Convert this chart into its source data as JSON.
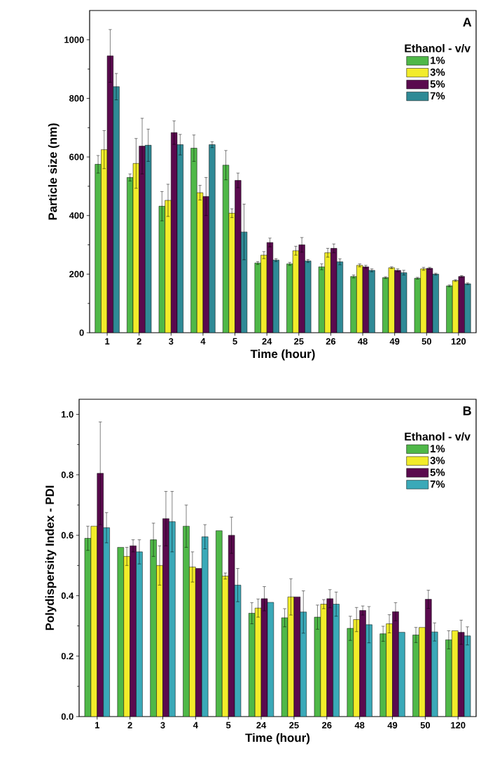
{
  "chart_data": [
    {
      "type": "bar",
      "xlabel": "Time (hour)",
      "ylabel": "Particle size (nm)",
      "legend_title": "Ethanol - v/v",
      "legend": "top right",
      "annotations": [
        "A"
      ],
      "categories": [
        "1",
        "2",
        "3",
        "4",
        "5",
        "24",
        "25",
        "26",
        "48",
        "49",
        "50",
        "120"
      ],
      "ylim": [
        0,
        1100
      ],
      "yticks": [
        0,
        200,
        400,
        600,
        800,
        1000
      ],
      "series": [
        {
          "name": "1%",
          "color": "#4fb848",
          "values": [
            575,
            530,
            432,
            630,
            572,
            238,
            235,
            225,
            192,
            188,
            186,
            160
          ],
          "errors": [
            30,
            12,
            50,
            45,
            50,
            5,
            5,
            10,
            5,
            3,
            3,
            3
          ]
        },
        {
          "name": "3%",
          "color": "#f2ec2a",
          "values": [
            625,
            578,
            452,
            478,
            408,
            265,
            280,
            273,
            230,
            222,
            218,
            178
          ],
          "errors": [
            65,
            85,
            55,
            25,
            15,
            12,
            15,
            15,
            5,
            3,
            5,
            3
          ]
        },
        {
          "name": "5%",
          "color": "#5a0a4e",
          "values": [
            945,
            637,
            683,
            465,
            520,
            308,
            300,
            288,
            225,
            213,
            220,
            192
          ],
          "errors": [
            90,
            95,
            40,
            65,
            25,
            15,
            25,
            15,
            5,
            5,
            3,
            3
          ]
        },
        {
          "name": "7%",
          "color": "#2f8a96",
          "values": [
            840,
            640,
            642,
            642,
            344,
            248,
            245,
            242,
            213,
            205,
            200,
            167
          ],
          "errors": [
            45,
            55,
            35,
            10,
            95,
            5,
            5,
            10,
            5,
            8,
            3,
            3
          ]
        }
      ]
    },
    {
      "type": "bar",
      "xlabel": "Time (hour)",
      "ylabel": "Polydispersity Index - PDI",
      "legend_title": "Ethanol - v/v",
      "legend": "top right",
      "annotations": [
        "B"
      ],
      "categories": [
        "1",
        "2",
        "3",
        "4",
        "5",
        "24",
        "25",
        "26",
        "48",
        "49",
        "50",
        "120"
      ],
      "ylim": [
        0,
        1.05
      ],
      "yticks": [
        {
          "value": 0,
          "label": "0.0"
        },
        {
          "value": 0.2,
          "label": "0.2"
        },
        {
          "value": 0.4,
          "label": "0.4"
        },
        {
          "value": 0.6,
          "label": "0.6"
        },
        {
          "value": 0.8,
          "label": "0.8"
        },
        {
          "value": 1,
          "label": "1.0"
        }
      ],
      "series": [
        {
          "name": "1%",
          "color": "#4fb848",
          "values": [
            0.59,
            0.56,
            0.585,
            0.63,
            0.615,
            0.342,
            0.327,
            0.329,
            0.292,
            0.274,
            0.27,
            0.254
          ],
          "errors": [
            0.04,
            null,
            0.055,
            0.07,
            null,
            0.035,
            0.03,
            0.04,
            0.04,
            0.025,
            0.025,
            0.03
          ]
        },
        {
          "name": "3%",
          "color": "#f2ec2a",
          "values": [
            0.63,
            0.53,
            0.5,
            0.495,
            0.465,
            0.359,
            0.396,
            0.372,
            0.321,
            0.307,
            0.295,
            0.284
          ],
          "errors": [
            null,
            0.03,
            0.065,
            0.05,
            0.01,
            0.03,
            0.06,
            0.015,
            0.04,
            0.03,
            null,
            null
          ]
        },
        {
          "name": "5%",
          "color": "#5a0a4e",
          "values": [
            0.805,
            0.565,
            0.655,
            0.49,
            0.6,
            0.39,
            0.396,
            0.39,
            0.351,
            0.347,
            0.388,
            0.279
          ],
          "errors": [
            0.17,
            0.02,
            0.09,
            null,
            0.06,
            0.04,
            null,
            0.03,
            0.015,
            0.03,
            0.03,
            0.04
          ]
        },
        {
          "name": "7%",
          "color": "#3aa9b8",
          "values": [
            0.625,
            0.545,
            0.645,
            0.595,
            0.435,
            0.378,
            0.346,
            0.372,
            0.304,
            0.279,
            0.28,
            0.267
          ],
          "errors": [
            0.05,
            0.04,
            0.1,
            0.04,
            0.055,
            null,
            0.07,
            0.04,
            0.06,
            null,
            0.03,
            0.03
          ]
        }
      ]
    }
  ]
}
